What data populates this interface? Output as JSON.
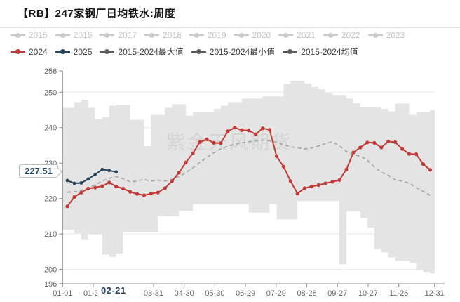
{
  "title": "【RB】247家钢厂日均铁水:周度",
  "watermark": "紫金天风期货",
  "legend": {
    "years_muted": [
      "2015",
      "2016",
      "2017",
      "2018",
      "2019",
      "2020",
      "2021",
      "2022",
      "2023"
    ],
    "muted_color": "#c9c9c9",
    "active": [
      {
        "label": "2024",
        "color": "#c23a36"
      },
      {
        "label": "2025",
        "color": "#25455e"
      },
      {
        "label": "2015-2024最大值",
        "color": "#5d5d5d"
      },
      {
        "label": "2015-2024最小值",
        "color": "#5d5d5d"
      },
      {
        "label": "2015-2024均值",
        "color": "#5d5d5d"
      }
    ]
  },
  "callout": {
    "value": "227.51"
  },
  "highlighted_tick": {
    "label": "02-21"
  },
  "colors": {
    "band": "#e4e4e4",
    "mean_dash": "#a6a6a6",
    "grid": "#e8e8e8",
    "axis": "#8c8c8c",
    "axis_text": "#666666",
    "watermark": "#cbcbcb",
    "red": "#c23a36",
    "navy": "#25455e"
  },
  "chart_data": {
    "type": "line",
    "title": "【RB】247家钢厂日均铁水:周度",
    "ylim": [
      196,
      256
    ],
    "y_ticks": [
      256,
      250,
      240,
      230,
      220,
      210,
      200,
      196
    ],
    "grid_ticks": [
      250,
      240,
      230,
      220,
      210,
      200
    ],
    "x_tick_labels": [
      "01-01",
      "01-31",
      "02-21",
      "03-31",
      "04-30",
      "05-30",
      "06-29",
      "07-29",
      "08-28",
      "09-27",
      "10-27",
      "11-26",
      "12-31"
    ],
    "x_tick_days": [
      0,
      30,
      51,
      89,
      119,
      149,
      179,
      209,
      239,
      269,
      299,
      329,
      364
    ],
    "highlight_tick_index": 2,
    "legend_position": "top",
    "grid": true,
    "series": [
      {
        "name": "2024",
        "style": "line-marker",
        "color": "#c23a36",
        "values": [
          217.8,
          220.4,
          221.7,
          222.8,
          223.1,
          223.5,
          224.5,
          223.4,
          222.8,
          221.9,
          221.3,
          220.9,
          221.4,
          221.7,
          222.9,
          224.9,
          227.3,
          230.2,
          232.8,
          235.9,
          236.7,
          235.7,
          235.6,
          239.0,
          240.0,
          239.3,
          239.2,
          238.1,
          239.8,
          239.4,
          231.9,
          229.0,
          224.9,
          221.4,
          222.9,
          223.4,
          223.8,
          224.3,
          224.7,
          225.2,
          228.2,
          233.0,
          234.4,
          235.8,
          235.7,
          234.4,
          236.1,
          235.9,
          234.0,
          232.6,
          232.5,
          229.7,
          228.1
        ]
      },
      {
        "name": "2025",
        "style": "line-marker",
        "color": "#25455e",
        "values": [
          225.1,
          224.3,
          224.4,
          225.5,
          226.8,
          228.2,
          227.9,
          227.51
        ],
        "latest": {
          "date": "02-21",
          "value": 227.51
        }
      },
      {
        "name": "2015-2024最大值",
        "style": "band-top",
        "color": "#e4e4e4",
        "values": [
          245.6,
          247.2,
          247.8,
          245.6,
          242.4,
          243.0,
          246.2,
          246.4,
          246.4,
          242.2,
          242.2,
          234.8,
          243.6,
          243.6,
          245.6,
          246.6,
          246.6,
          243.4,
          244.3,
          244.3,
          244.3,
          245.3,
          246.2,
          247.2,
          247.2,
          248.2,
          248.2,
          248.2,
          248.8,
          248.8,
          248.8,
          252.4,
          253.2,
          253.2,
          252.4,
          251.5,
          250.8,
          249.8,
          249.2,
          249.2,
          248.2,
          246.9,
          245.9,
          245.9,
          245.9,
          245.3,
          244.6,
          246.8,
          246.8,
          243.6,
          244.3,
          244.3,
          245.0
        ]
      },
      {
        "name": "2015-2024最小值",
        "style": "band-bottom",
        "color": "#e4e4e4",
        "values": [
          211.2,
          210.2,
          208.3,
          210.0,
          210.0,
          204.2,
          203.5,
          204.5,
          210.5,
          210.5,
          210.5,
          210.5,
          210.5,
          215.0,
          215.0,
          215.0,
          216.5,
          216.5,
          218.4,
          218.4,
          218.4,
          218.4,
          218.4,
          218.4,
          218.4,
          218.4,
          216.0,
          216.0,
          216.0,
          218.4,
          214.1,
          214.1,
          214.1,
          219.3,
          219.3,
          219.3,
          219.3,
          219.3,
          219.3,
          201.4,
          216.4,
          216.4,
          214.5,
          211.8,
          205.7,
          204.8,
          203.4,
          202.4,
          202.4,
          201.8,
          199.9,
          199.3,
          198.9
        ]
      },
      {
        "name": "2015-2024均值",
        "style": "dashed",
        "color": "#a6a6a6",
        "values": [
          221.8,
          221.9,
          222.3,
          223.0,
          223.9,
          224.9,
          225.7,
          226.2,
          225.6,
          224.7,
          224.9,
          225.4,
          224.9,
          225.2,
          224.9,
          225.4,
          226.2,
          227.3,
          228.7,
          230.2,
          231.6,
          232.9,
          234.0,
          234.8,
          235.3,
          235.7,
          236.0,
          236.3,
          236.5,
          236.3,
          235.9,
          235.2,
          234.6,
          234.3,
          234.0,
          234.3,
          234.8,
          235.5,
          236.0,
          234.9,
          233.3,
          232.3,
          232.0,
          230.8,
          228.9,
          227.4,
          226.6,
          225.3,
          224.9,
          224.3,
          223.1,
          222.0,
          220.9
        ]
      }
    ]
  }
}
